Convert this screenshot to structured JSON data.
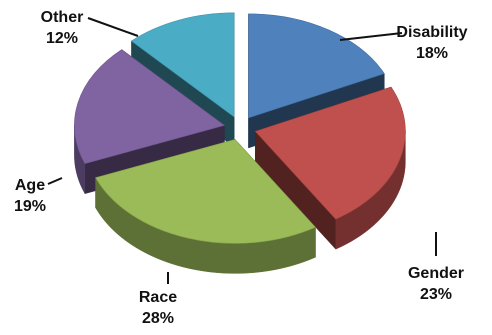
{
  "chart_data": {
    "type": "pie",
    "style": "3d-exploded",
    "categories": [
      "Disability",
      "Gender",
      "Race",
      "Age",
      "Other"
    ],
    "values": [
      18,
      23,
      28,
      19,
      12
    ],
    "labels": [
      "18%",
      "23%",
      "28%",
      "19%",
      "12%"
    ],
    "colors": [
      "#4F81BD",
      "#C0504D",
      "#9BBB59",
      "#8064A2",
      "#4BACC6"
    ],
    "title": "",
    "legend": "none"
  }
}
